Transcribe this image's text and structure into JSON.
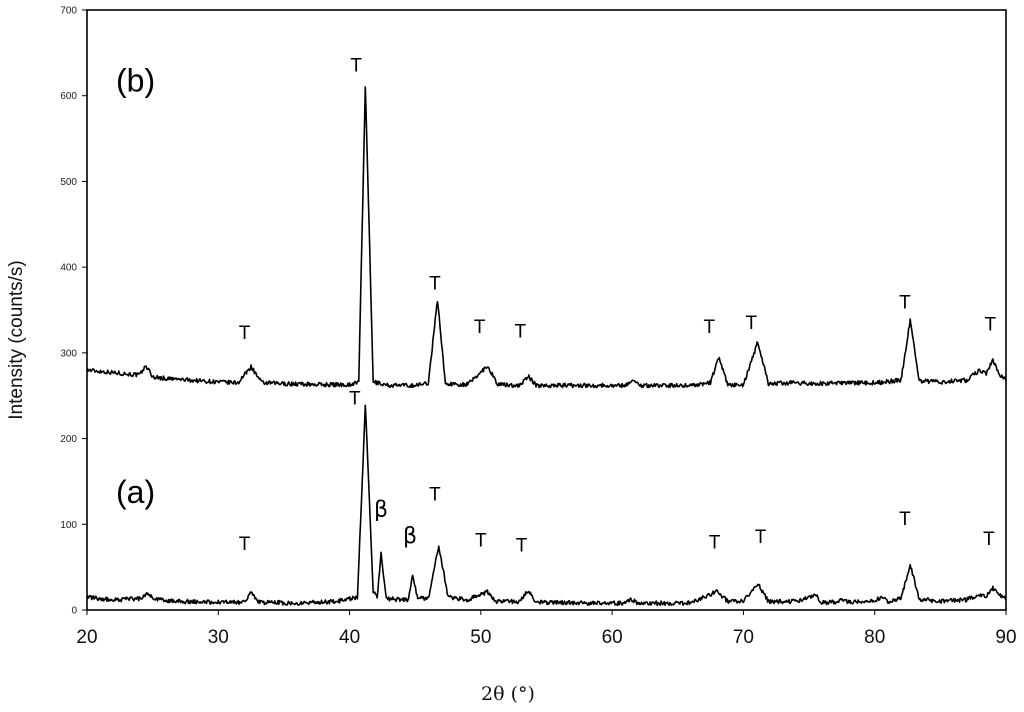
{
  "chart_data": {
    "type": "line",
    "xlabel": "2θ (°)",
    "ylabel": "Intensity (counts/s)",
    "xlim": [
      20,
      90
    ],
    "ylim": [
      0,
      700
    ],
    "xticks": [
      20,
      30,
      40,
      50,
      60,
      70,
      80,
      90
    ],
    "yticks": [
      0,
      100,
      200,
      300,
      400,
      500,
      600,
      700
    ],
    "grid": false,
    "panel_labels": [
      {
        "text": "(b)",
        "x": 23.7,
        "y": 605
      },
      {
        "text": "(a)",
        "x": 23.7,
        "y": 125
      }
    ],
    "series": [
      {
        "points": [
          [
            20,
            280
          ],
          [
            22,
            277
          ],
          [
            24,
            274
          ],
          [
            24.5,
            285
          ],
          [
            25,
            272
          ],
          [
            26,
            270
          ],
          [
            28,
            268
          ],
          [
            30,
            266
          ],
          [
            31.5,
            265
          ],
          [
            32.5,
            284
          ],
          [
            33.3,
            265
          ],
          [
            35,
            264
          ],
          [
            38,
            263
          ],
          [
            40,
            263
          ],
          [
            40.7,
            266
          ],
          [
            41.2,
            612
          ],
          [
            41.8,
            266
          ],
          [
            43,
            262
          ],
          [
            45,
            262
          ],
          [
            46,
            265
          ],
          [
            46.7,
            362
          ],
          [
            47.3,
            264
          ],
          [
            49,
            263
          ],
          [
            50.5,
            285
          ],
          [
            51.3,
            263
          ],
          [
            53,
            262
          ],
          [
            53.6,
            273
          ],
          [
            54.2,
            262
          ],
          [
            57,
            262
          ],
          [
            61,
            262
          ],
          [
            61.5,
            268
          ],
          [
            62.2,
            262
          ],
          [
            66,
            262
          ],
          [
            67.5,
            265
          ],
          [
            68.1,
            295
          ],
          [
            68.8,
            263
          ],
          [
            70,
            262
          ],
          [
            71.1,
            313
          ],
          [
            71.9,
            264
          ],
          [
            73.5,
            265
          ],
          [
            76,
            264
          ],
          [
            78,
            265
          ],
          [
            80,
            265
          ],
          [
            82,
            268
          ],
          [
            82.7,
            338
          ],
          [
            83.4,
            267
          ],
          [
            85,
            266
          ],
          [
            87,
            268
          ],
          [
            88,
            280
          ],
          [
            88.5,
            276
          ],
          [
            89,
            292
          ],
          [
            89.5,
            275
          ],
          [
            90,
            268
          ]
        ]
      },
      {
        "points": [
          [
            20,
            15
          ],
          [
            22,
            12
          ],
          [
            24,
            13
          ],
          [
            24.6,
            20
          ],
          [
            25.2,
            12
          ],
          [
            27,
            10
          ],
          [
            30,
            9
          ],
          [
            32,
            9
          ],
          [
            32.5,
            22
          ],
          [
            33.1,
            9
          ],
          [
            36,
            8
          ],
          [
            39,
            10
          ],
          [
            40.6,
            15
          ],
          [
            41.2,
            240
          ],
          [
            41.8,
            22
          ],
          [
            42.1,
            14
          ],
          [
            42.4,
            67
          ],
          [
            42.8,
            13
          ],
          [
            44.5,
            12
          ],
          [
            44.8,
            42
          ],
          [
            45.2,
            13
          ],
          [
            46,
            14
          ],
          [
            46.8,
            75
          ],
          [
            47.5,
            15
          ],
          [
            49,
            12
          ],
          [
            50.5,
            21
          ],
          [
            51.2,
            10
          ],
          [
            53,
            10
          ],
          [
            53.6,
            23
          ],
          [
            54.2,
            9
          ],
          [
            58,
            8
          ],
          [
            61,
            8
          ],
          [
            61.4,
            12
          ],
          [
            62,
            8
          ],
          [
            66,
            8
          ],
          [
            68,
            22
          ],
          [
            68.8,
            10
          ],
          [
            70,
            10
          ],
          [
            71.1,
            31
          ],
          [
            71.9,
            10
          ],
          [
            74,
            10
          ],
          [
            75.5,
            18
          ],
          [
            75.9,
            9
          ],
          [
            77,
            9
          ],
          [
            77.5,
            12
          ],
          [
            78.2,
            9
          ],
          [
            80,
            10
          ],
          [
            80.5,
            16
          ],
          [
            81,
            10
          ],
          [
            82,
            13
          ],
          [
            82.7,
            53
          ],
          [
            83.4,
            13
          ],
          [
            85,
            10
          ],
          [
            87,
            12
          ],
          [
            88,
            18
          ],
          [
            88.5,
            16
          ],
          [
            89,
            26
          ],
          [
            89.5,
            18
          ],
          [
            90,
            12
          ]
        ]
      }
    ],
    "annotations": [
      {
        "text": "T",
        "x": 40.5,
        "y": 628
      },
      {
        "text": "T",
        "x": 32.0,
        "y": 316
      },
      {
        "text": "T",
        "x": 46.5,
        "y": 374
      },
      {
        "text": "T",
        "x": 49.9,
        "y": 323
      },
      {
        "text": "T",
        "x": 53.0,
        "y": 318
      },
      {
        "text": "T",
        "x": 67.4,
        "y": 323
      },
      {
        "text": "T",
        "x": 70.6,
        "y": 328
      },
      {
        "text": "T",
        "x": 82.3,
        "y": 352
      },
      {
        "text": "T",
        "x": 88.8,
        "y": 326
      },
      {
        "text": "T",
        "x": 40.4,
        "y": 240
      },
      {
        "text": "T",
        "x": 32.0,
        "y": 70
      },
      {
        "text": "T",
        "x": 46.5,
        "y": 128
      },
      {
        "text": "T",
        "x": 50.0,
        "y": 74
      },
      {
        "text": "T",
        "x": 53.1,
        "y": 68
      },
      {
        "text": "T",
        "x": 67.8,
        "y": 72
      },
      {
        "text": "T",
        "x": 71.3,
        "y": 78
      },
      {
        "text": "T",
        "x": 82.3,
        "y": 99
      },
      {
        "text": "T",
        "x": 88.7,
        "y": 76
      },
      {
        "text": "β",
        "x": 42.4,
        "y": 109
      },
      {
        "text": "β",
        "x": 44.6,
        "y": 78
      }
    ]
  }
}
